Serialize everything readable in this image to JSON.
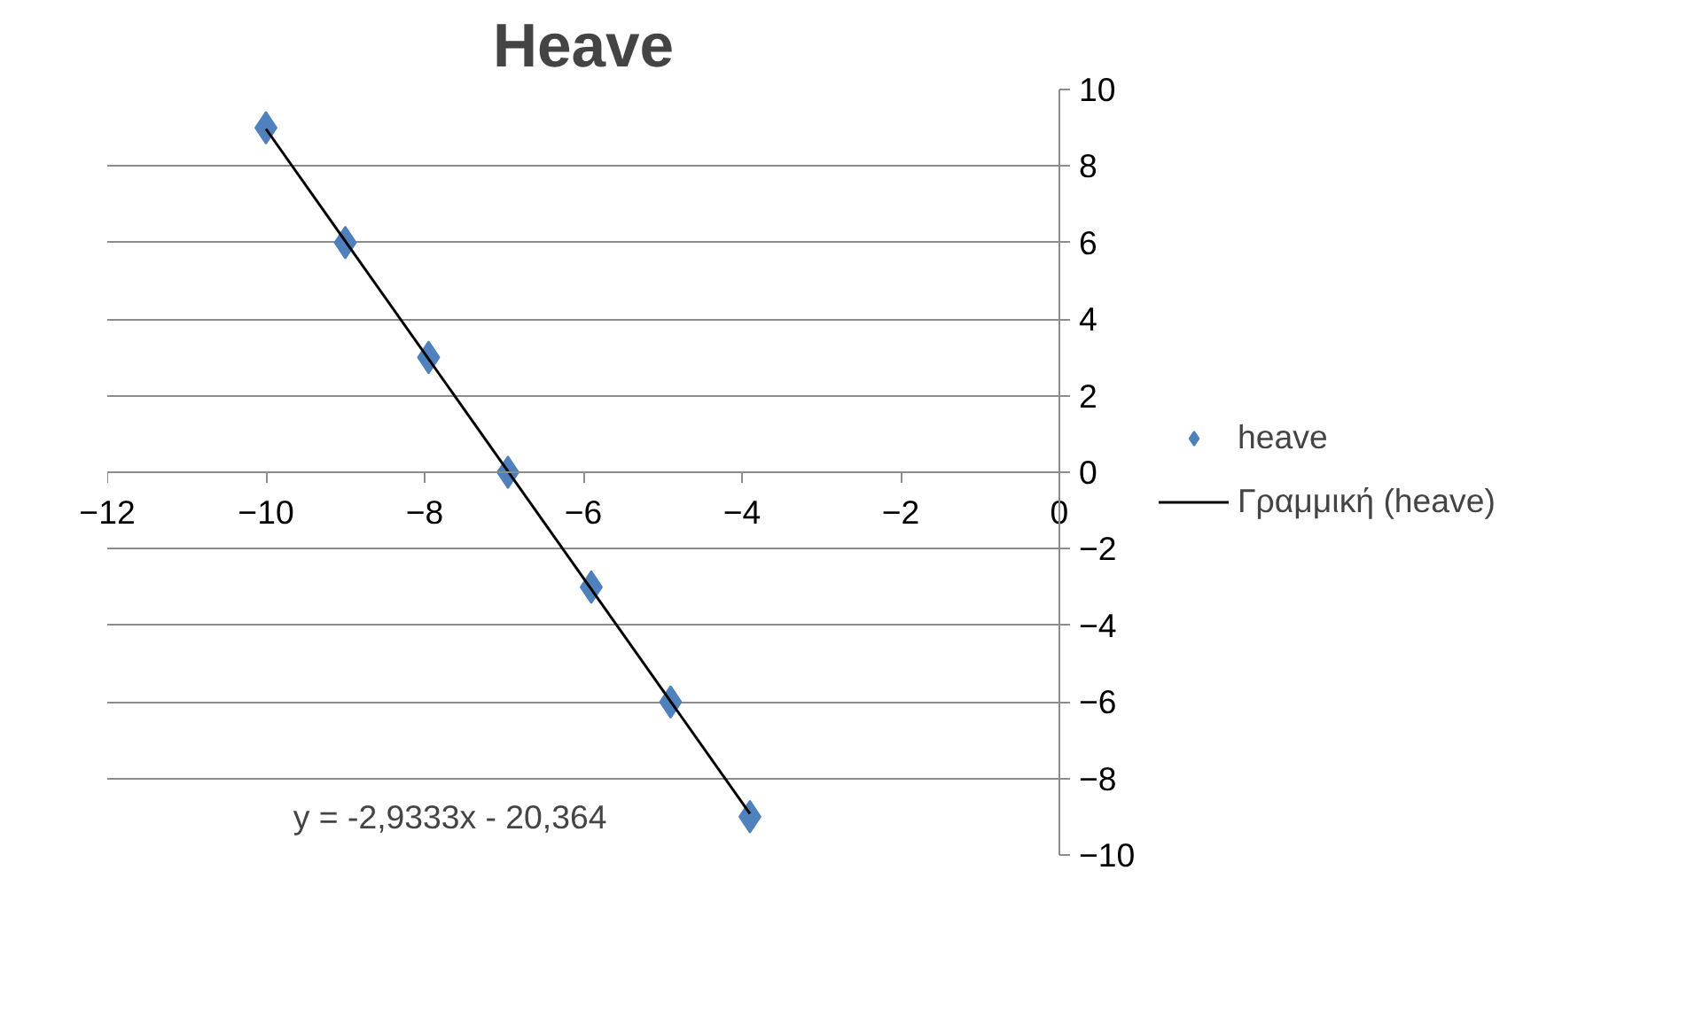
{
  "chart_data": {
    "type": "scatter",
    "title": "Heave",
    "xlim": [
      -12,
      0
    ],
    "xticks": [
      -12,
      -10,
      -8,
      -6,
      -4,
      -2,
      0
    ],
    "ylim": [
      -10,
      10
    ],
    "yticks": [
      -10,
      -8,
      -6,
      -4,
      -2,
      0,
      2,
      4,
      6,
      8,
      10
    ],
    "grid": "y",
    "legend": "right",
    "marker": "diamond",
    "series": [
      {
        "name": "heave",
        "color": "#4f81bd",
        "x": [
          -10,
          -9,
          -7.95,
          -6.95,
          -5.9,
          -4.9,
          -3.9
        ],
        "values": [
          9,
          6,
          3,
          0,
          -3,
          -6,
          -9
        ]
      },
      {
        "name": "Γραμμική (heave)",
        "type": "line",
        "color": "#000000",
        "line_style": "solid",
        "marker": "none",
        "x": [
          -10,
          -3.9
        ],
        "values": [
          8.97,
          -8.92
        ]
      }
    ],
    "annotations": [
      "y = -2,9333x - 20,364"
    ]
  }
}
